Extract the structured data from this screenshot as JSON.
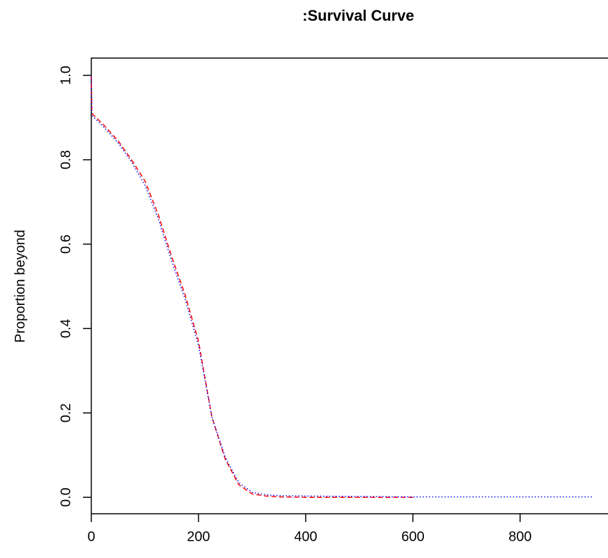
{
  "chart_data": {
    "type": "line",
    "title": ":Survival Curve",
    "y_label": "Proportion beyond",
    "x": [
      0,
      1,
      25,
      50,
      75,
      100,
      125,
      150,
      175,
      200,
      225,
      250,
      275,
      300,
      325,
      350,
      400,
      500,
      600,
      700,
      800,
      935
    ],
    "series": [
      {
        "color": "#ff0000",
        "dash": "dashed",
        "values": [
          1.0,
          0.91,
          0.88,
          0.845,
          0.8,
          0.75,
          0.67,
          0.57,
          0.48,
          0.37,
          0.19,
          0.09,
          0.03,
          0.008,
          0.003,
          0.001,
          0.0,
          0.0,
          0.0,
          null,
          null,
          null
        ]
      },
      {
        "color": "#0000ff",
        "dash": "dotted",
        "values": [
          1.0,
          0.905,
          0.875,
          0.84,
          0.795,
          0.74,
          0.66,
          0.56,
          0.47,
          0.36,
          0.19,
          0.095,
          0.035,
          0.012,
          0.006,
          0.004,
          0.003,
          0.002,
          0.001,
          0.001,
          0.001,
          0.001
        ]
      }
    ],
    "xlim": [
      0,
      964
    ],
    "xticks": [
      0,
      200,
      400,
      600,
      800
    ],
    "ylim": [
      -0.039,
      1.041
    ],
    "yticks": [
      {
        "value": 0,
        "label": "0.0"
      },
      0.2,
      0.4,
      0.6,
      0.8,
      {
        "value": 1,
        "label": "1.0"
      }
    ]
  }
}
